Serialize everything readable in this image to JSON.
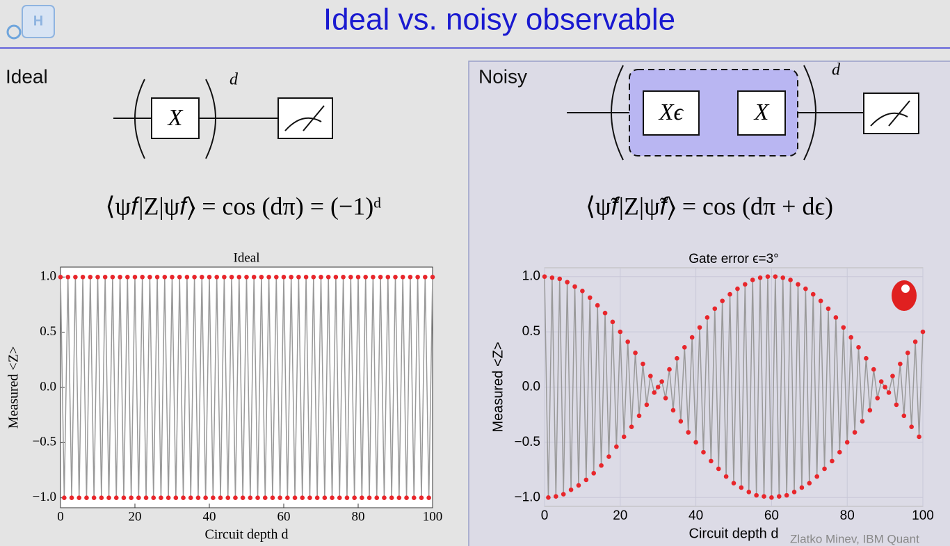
{
  "header": {
    "title": "Ideal vs. noisy observable",
    "logo": "H"
  },
  "panels": [
    {
      "label": "Ideal",
      "gates": [
        "X"
      ],
      "exponent": "d",
      "equation": "⟨ψ𝑓|Z|ψ𝑓⟩ = cos (dπ) = (−1)ᵈ"
    },
    {
      "label": "Noisy",
      "gates": [
        "Xϵ",
        "X"
      ],
      "exponent": "d",
      "equation": "⟨ψ̃𝑓|Z|ψ̃𝑓⟩ = cos (dπ + dϵ)"
    }
  ],
  "footer": "Zlatko Minev, IBM Quant",
  "chart_data": [
    {
      "type": "line",
      "title": "Ideal",
      "xlabel": "Circuit depth d",
      "ylabel": "Measured <Z>",
      "color": "#e8262b",
      "line_color": "#9a9a9a",
      "grid": false,
      "x": [
        0,
        1,
        2,
        3,
        4,
        5,
        6,
        7,
        8,
        9,
        10,
        11,
        12,
        13,
        14,
        15,
        16,
        17,
        18,
        19,
        20,
        21,
        22,
        23,
        24,
        25,
        26,
        27,
        28,
        29,
        30,
        31,
        32,
        33,
        34,
        35,
        36,
        37,
        38,
        39,
        40,
        41,
        42,
        43,
        44,
        45,
        46,
        47,
        48,
        49,
        50,
        51,
        52,
        53,
        54,
        55,
        56,
        57,
        58,
        59,
        60,
        61,
        62,
        63,
        64,
        65,
        66,
        67,
        68,
        69,
        70,
        71,
        72,
        73,
        74,
        75,
        76,
        77,
        78,
        79,
        80,
        81,
        82,
        83,
        84,
        85,
        86,
        87,
        88,
        89,
        90,
        91,
        92,
        93,
        94,
        95,
        96,
        97,
        98,
        99,
        100
      ],
      "values": [
        1,
        -1,
        1,
        -1,
        1,
        -1,
        1,
        -1,
        1,
        -1,
        1,
        -1,
        1,
        -1,
        1,
        -1,
        1,
        -1,
        1,
        -1,
        1,
        -1,
        1,
        -1,
        1,
        -1,
        1,
        -1,
        1,
        -1,
        1,
        -1,
        1,
        -1,
        1,
        -1,
        1,
        -1,
        1,
        -1,
        1,
        -1,
        1,
        -1,
        1,
        -1,
        1,
        -1,
        1,
        -1,
        1,
        -1,
        1,
        -1,
        1,
        -1,
        1,
        -1,
        1,
        -1,
        1,
        -1,
        1,
        -1,
        1,
        -1,
        1,
        -1,
        1,
        -1,
        1,
        -1,
        1,
        -1,
        1,
        -1,
        1,
        -1,
        1,
        -1,
        1,
        -1,
        1,
        -1,
        1,
        -1,
        1,
        -1,
        1,
        -1,
        1,
        -1,
        1,
        -1,
        1,
        -1,
        1,
        -1,
        1,
        -1,
        1
      ],
      "xlim": [
        0,
        100
      ],
      "xticks": [
        0,
        20,
        40,
        60,
        80,
        100
      ],
      "ylim": [
        -1.09,
        1.09
      ],
      "yticks": [
        {
          "value": -1,
          "label": "−1.0"
        },
        {
          "value": -0.5,
          "label": "−0.5"
        },
        {
          "value": 0,
          "label": "0.0"
        },
        {
          "value": 0.5,
          "label": "0.5"
        },
        {
          "value": 1,
          "label": "1.0"
        }
      ]
    },
    {
      "type": "line",
      "title": "Gate error ϵ=3°",
      "xlabel": "Circuit depth d",
      "ylabel": "Measured <Z>",
      "color": "#e8262b",
      "line_color": "#9a9a9a",
      "grid": true,
      "x": [
        0,
        1,
        2,
        3,
        4,
        5,
        6,
        7,
        8,
        9,
        10,
        11,
        12,
        13,
        14,
        15,
        16,
        17,
        18,
        19,
        20,
        21,
        22,
        23,
        24,
        25,
        26,
        27,
        28,
        29,
        30,
        31,
        32,
        33,
        34,
        35,
        36,
        37,
        38,
        39,
        40,
        41,
        42,
        43,
        44,
        45,
        46,
        47,
        48,
        49,
        50,
        51,
        52,
        53,
        54,
        55,
        56,
        57,
        58,
        59,
        60,
        61,
        62,
        63,
        64,
        65,
        66,
        67,
        68,
        69,
        70,
        71,
        72,
        73,
        74,
        75,
        76,
        77,
        78,
        79,
        80,
        81,
        82,
        83,
        84,
        85,
        86,
        87,
        88,
        89,
        90,
        91,
        92,
        93,
        94,
        95,
        96,
        97,
        98,
        99,
        100
      ],
      "values": [
        1,
        -1,
        0.99,
        -0.99,
        0.98,
        -0.97,
        0.95,
        -0.93,
        0.91,
        -0.89,
        0.87,
        -0.84,
        0.81,
        -0.78,
        0.74,
        -0.71,
        0.67,
        -0.63,
        0.59,
        -0.54,
        0.5,
        -0.45,
        0.41,
        -0.36,
        0.31,
        -0.26,
        0.21,
        -0.16,
        0.1,
        -0.05,
        0,
        0.05,
        -0.1,
        0.16,
        -0.21,
        0.26,
        -0.31,
        0.36,
        -0.41,
        0.45,
        -0.5,
        0.54,
        -0.59,
        0.63,
        -0.67,
        0.71,
        -0.74,
        0.78,
        -0.81,
        0.84,
        -0.87,
        0.89,
        -0.91,
        0.93,
        -0.95,
        0.97,
        -0.98,
        0.99,
        -0.99,
        1,
        -1,
        1,
        -0.99,
        0.99,
        -0.98,
        0.97,
        -0.95,
        0.93,
        -0.91,
        0.89,
        -0.87,
        0.84,
        -0.81,
        0.78,
        -0.74,
        0.71,
        -0.67,
        0.63,
        -0.59,
        0.54,
        -0.5,
        0.45,
        -0.41,
        0.36,
        -0.31,
        0.26,
        -0.21,
        0.16,
        -0.1,
        0.05,
        0,
        -0.05,
        0.1,
        -0.16,
        0.21,
        -0.26,
        0.31,
        -0.36,
        0.41,
        -0.45,
        0.5
      ],
      "xlim": [
        0,
        100
      ],
      "xticks": [
        0,
        20,
        40,
        60,
        80,
        100
      ],
      "ylim": [
        -1.08,
        1.08
      ],
      "yticks": [
        {
          "value": -1,
          "label": "−1.0"
        },
        {
          "value": -0.5,
          "label": "−0.5"
        },
        {
          "value": 0,
          "label": "0.0"
        },
        {
          "value": 0.5,
          "label": "0.5"
        },
        {
          "value": 1,
          "label": "1.0"
        }
      ]
    }
  ]
}
